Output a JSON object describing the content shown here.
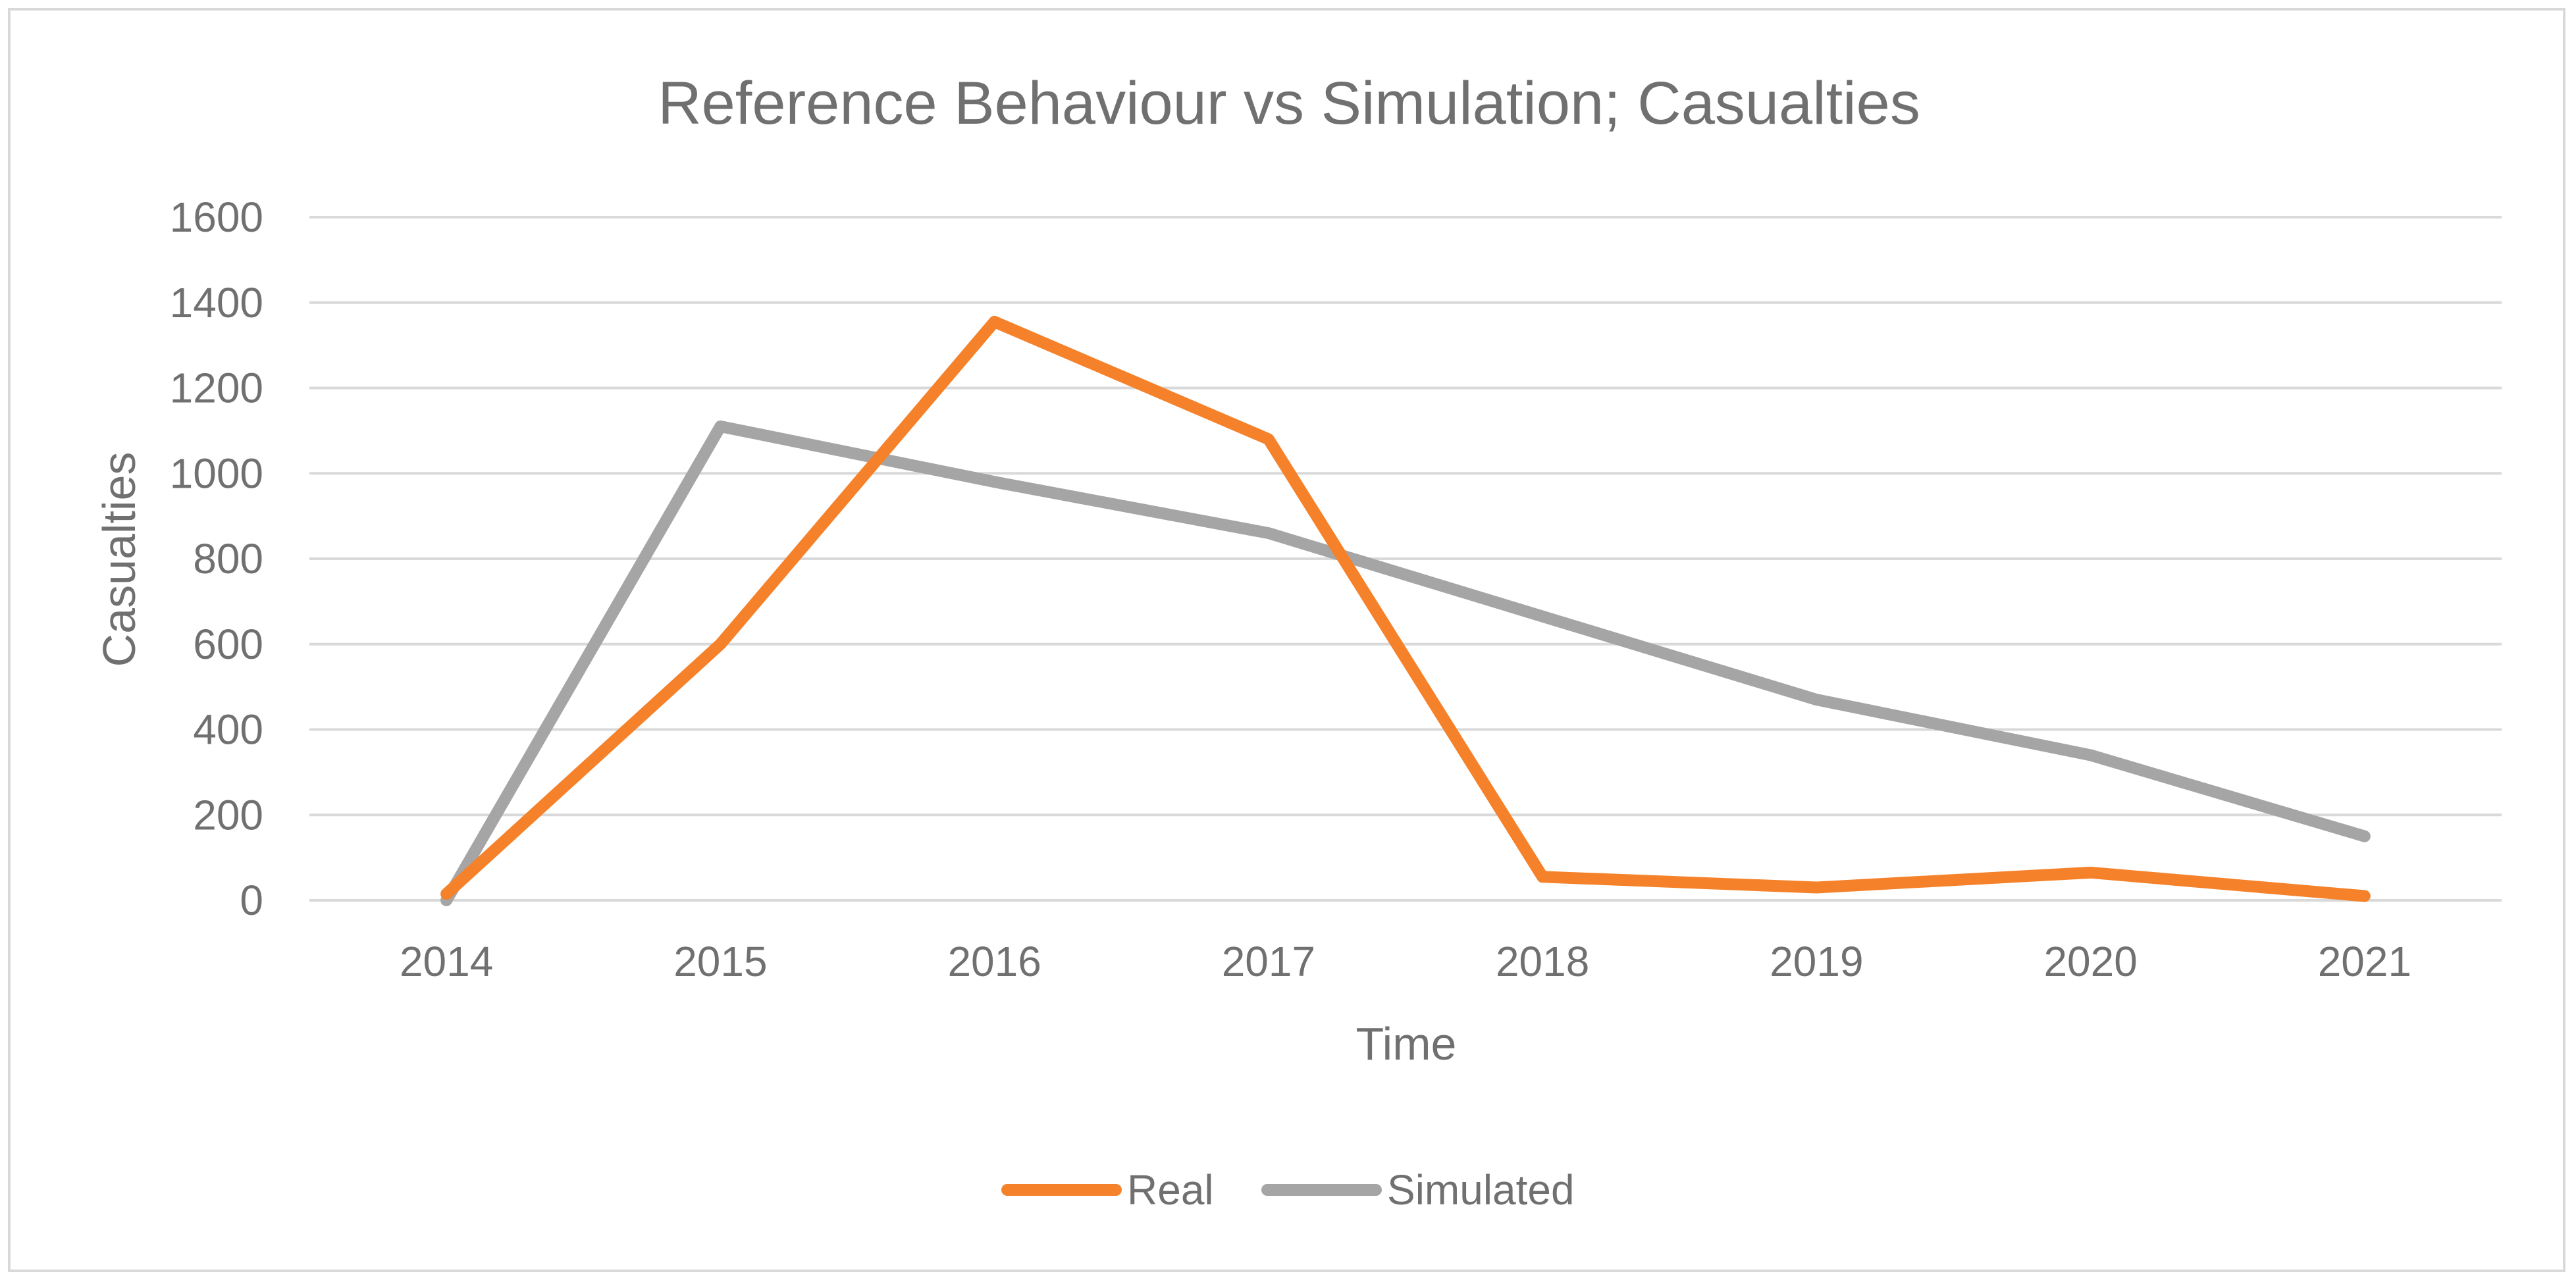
{
  "chart_data": {
    "type": "line",
    "title": "Reference Behaviour vs Simulation; Casualties",
    "xlabel": "Time",
    "ylabel": "Casualties",
    "categories": [
      "2014",
      "2015",
      "2016",
      "2017",
      "2018",
      "2019",
      "2020",
      "2021"
    ],
    "ylim": [
      0,
      1600
    ],
    "yticks": [
      0,
      200,
      400,
      600,
      800,
      1000,
      1200,
      1400,
      1600
    ],
    "grid": true,
    "legend_position": "bottom",
    "series": [
      {
        "name": "Real",
        "color": "#f5822a",
        "values": [
          15,
          600,
          1355,
          1080,
          55,
          30,
          65,
          10
        ]
      },
      {
        "name": "Simulated",
        "color": "#a5a5a5",
        "values": [
          0,
          1110,
          980,
          860,
          665,
          470,
          340,
          150
        ]
      }
    ]
  }
}
